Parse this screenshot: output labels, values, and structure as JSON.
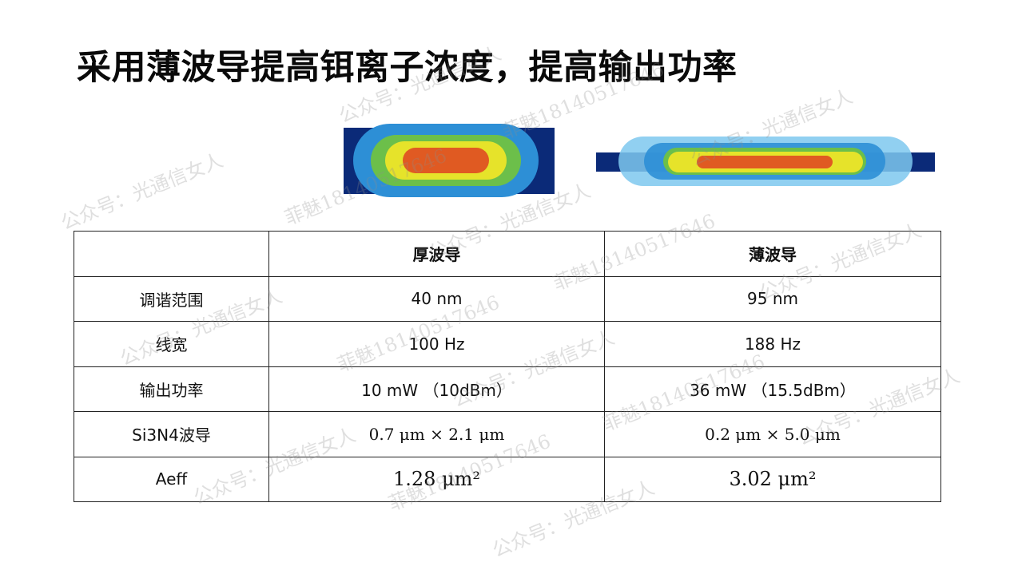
{
  "slide": {
    "title": "采用薄波导提高铒离子浓度，提高输出功率"
  },
  "table": {
    "headers": [
      "",
      "厚波导",
      "薄波导"
    ],
    "rows": [
      {
        "label": "调谐范围",
        "thick": "40 nm",
        "thin": "95 nm"
      },
      {
        "label": "线宽",
        "thick": "100 Hz",
        "thin": "188 Hz"
      },
      {
        "label": "输出功率",
        "thick": "10 mW  （10dBm）",
        "thin": "36 mW  （15.5dBm）"
      },
      {
        "label": "Si3N4波导",
        "thick": "0.7 μm × 2.1 μm",
        "thin": "0.2 μm × 5.0 μm"
      },
      {
        "label": "Aeff",
        "thick": "1.28 μm²",
        "thin": "3.02 μm²"
      }
    ]
  },
  "watermarks": {
    "account": "公众号：光通信女人",
    "name": "菲魅18140517646"
  },
  "colors": {
    "core": "#0b2a78",
    "mode_outer": "#7ec8ee",
    "mode_blue": "#2d8fd6",
    "mode_green": "#6cbf4a",
    "mode_yellow": "#e6e32a",
    "mode_peak": "#e05a22"
  }
}
